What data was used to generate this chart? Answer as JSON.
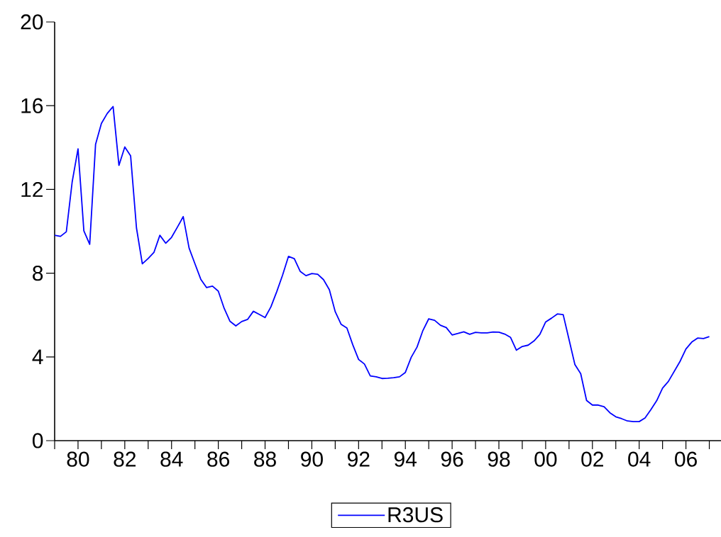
{
  "chart_data": {
    "type": "line",
    "x": [
      "1979-01",
      "1979-04",
      "1979-07",
      "1979-10",
      "1980-01",
      "1980-04",
      "1980-07",
      "1980-10",
      "1981-01",
      "1981-04",
      "1981-07",
      "1981-10",
      "1982-01",
      "1982-04",
      "1982-07",
      "1982-10",
      "1983-01",
      "1983-04",
      "1983-07",
      "1983-10",
      "1984-01",
      "1984-04",
      "1984-07",
      "1984-10",
      "1985-01",
      "1985-04",
      "1985-07",
      "1985-10",
      "1986-01",
      "1986-04",
      "1986-07",
      "1986-10",
      "1987-01",
      "1987-04",
      "1987-07",
      "1987-10",
      "1988-01",
      "1988-04",
      "1988-07",
      "1988-10",
      "1989-01",
      "1989-04",
      "1989-07",
      "1989-10",
      "1990-01",
      "1990-04",
      "1990-07",
      "1990-10",
      "1991-01",
      "1991-04",
      "1991-07",
      "1991-10",
      "1992-01",
      "1992-04",
      "1992-07",
      "1992-10",
      "1993-01",
      "1993-04",
      "1993-07",
      "1993-10",
      "1994-01",
      "1994-04",
      "1994-07",
      "1994-10",
      "1995-01",
      "1995-04",
      "1995-07",
      "1995-10",
      "1996-01",
      "1996-04",
      "1996-07",
      "1996-10",
      "1997-01",
      "1997-04",
      "1997-07",
      "1997-10",
      "1998-01",
      "1998-04",
      "1998-07",
      "1998-10",
      "1999-01",
      "1999-04",
      "1999-07",
      "1999-10",
      "2000-01",
      "2000-04",
      "2000-07",
      "2000-10",
      "2001-01",
      "2001-04",
      "2001-07",
      "2001-10",
      "2002-01",
      "2002-04",
      "2002-07",
      "2002-10",
      "2003-01",
      "2003-04",
      "2003-07",
      "2003-10",
      "2004-01",
      "2004-04",
      "2004-07",
      "2004-10",
      "2005-01",
      "2005-04",
      "2005-07",
      "2005-10",
      "2006-01",
      "2006-04",
      "2006-07",
      "2006-10",
      "2007-01"
    ],
    "series": [
      {
        "name": "R3US",
        "color": "#0000ff",
        "values": [
          9.81,
          9.76,
          9.98,
          12.36,
          13.94,
          10.02,
          9.38,
          14.15,
          15.15,
          15.63,
          15.96,
          13.15,
          14.03,
          13.6,
          10.16,
          8.45,
          8.7,
          9.0,
          9.81,
          9.43,
          9.71,
          10.2,
          10.7,
          9.2,
          8.45,
          7.71,
          7.31,
          7.38,
          7.14,
          6.32,
          5.7,
          5.48,
          5.69,
          5.79,
          6.18,
          6.03,
          5.88,
          6.39,
          7.12,
          7.91,
          8.8,
          8.69,
          8.09,
          7.88,
          7.98,
          7.95,
          7.69,
          7.21,
          6.16,
          5.56,
          5.38,
          4.58,
          3.88,
          3.66,
          3.09,
          3.05,
          2.97,
          2.98,
          3.01,
          3.05,
          3.26,
          3.98,
          4.47,
          5.26,
          5.82,
          5.75,
          5.51,
          5.4,
          5.05,
          5.12,
          5.2,
          5.08,
          5.17,
          5.15,
          5.15,
          5.19,
          5.18,
          5.09,
          4.93,
          4.32,
          4.5,
          4.56,
          4.76,
          5.07,
          5.67,
          5.85,
          6.05,
          6.02,
          4.83,
          3.64,
          3.2,
          1.92,
          1.7,
          1.7,
          1.62,
          1.33,
          1.14,
          1.05,
          0.94,
          0.91,
          0.91,
          1.08,
          1.48,
          1.91,
          2.51,
          2.83,
          3.31,
          3.79,
          4.38,
          4.71,
          4.9,
          4.88,
          4.97
        ]
      }
    ],
    "xlim": [
      "1979-01",
      "2007-07"
    ],
    "xticks": [
      {
        "value": "1979",
        "label": null
      },
      {
        "value": "1980",
        "label": "80"
      },
      {
        "value": "1981",
        "label": null
      },
      {
        "value": "1982",
        "label": "82"
      },
      {
        "value": "1983",
        "label": null
      },
      {
        "value": "1984",
        "label": "84"
      },
      {
        "value": "1985",
        "label": null
      },
      {
        "value": "1986",
        "label": "86"
      },
      {
        "value": "1987",
        "label": null
      },
      {
        "value": "1988",
        "label": "88"
      },
      {
        "value": "1989",
        "label": null
      },
      {
        "value": "1990",
        "label": "90"
      },
      {
        "value": "1991",
        "label": null
      },
      {
        "value": "1992",
        "label": "92"
      },
      {
        "value": "1993",
        "label": null
      },
      {
        "value": "1994",
        "label": "94"
      },
      {
        "value": "1995",
        "label": null
      },
      {
        "value": "1996",
        "label": "96"
      },
      {
        "value": "1997",
        "label": null
      },
      {
        "value": "1998",
        "label": "98"
      },
      {
        "value": "1999",
        "label": null
      },
      {
        "value": "2000",
        "label": "00"
      },
      {
        "value": "2001",
        "label": null
      },
      {
        "value": "2002",
        "label": "02"
      },
      {
        "value": "2003",
        "label": null
      },
      {
        "value": "2004",
        "label": "04"
      },
      {
        "value": "2005",
        "label": null
      },
      {
        "value": "2006",
        "label": "06"
      },
      {
        "value": "2007",
        "label": null
      }
    ],
    "ylim": [
      0,
      20
    ],
    "yticks": [
      0,
      4,
      8,
      12,
      16,
      20
    ],
    "legend": "bottom",
    "line_style": "solid",
    "grid": false
  }
}
